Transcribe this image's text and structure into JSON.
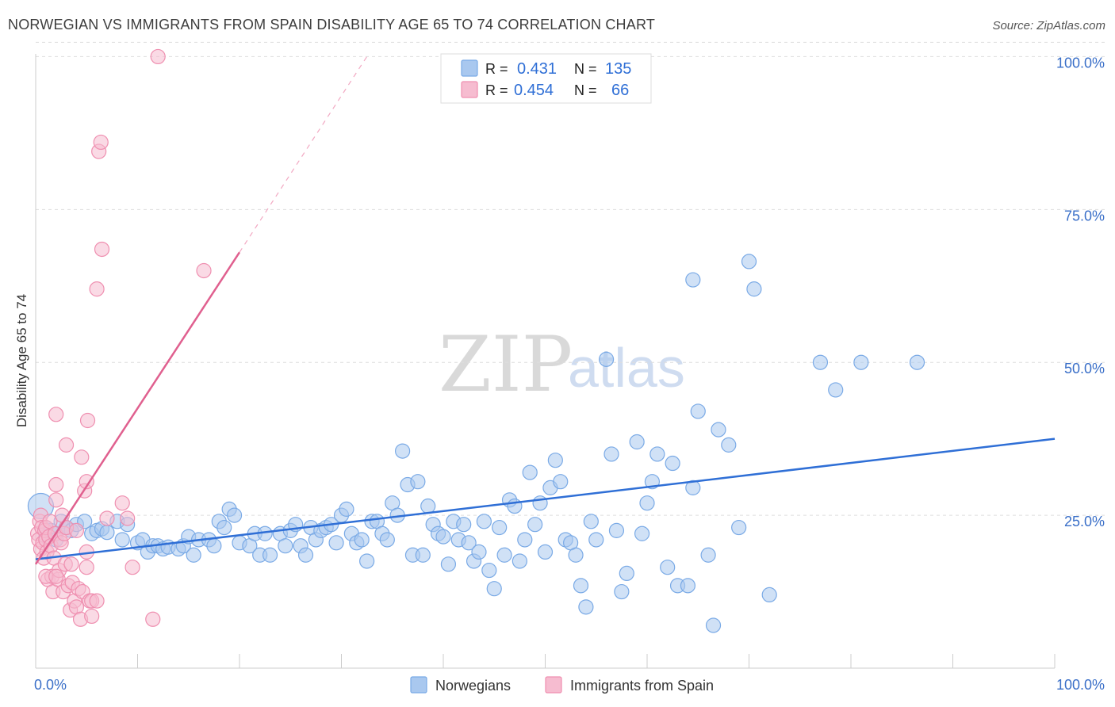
{
  "title": "NORWEGIAN VS IMMIGRANTS FROM SPAIN DISABILITY AGE 65 TO 74 CORRELATION CHART",
  "source": "Source: ZipAtlas.com",
  "watermark": {
    "zip": "ZIP",
    "atlas": "atlas"
  },
  "colors": {
    "blue_fill": "#a9c8ef",
    "blue_stroke": "#7aaae6",
    "blue_line": "#2f6fd6",
    "pink_fill": "#f6bcd0",
    "pink_stroke": "#ef8fb0",
    "pink_line": "#e0608f",
    "grid": "#dddddd",
    "tick_text": "#3a6fc8"
  },
  "stats_legend": {
    "rows": [
      {
        "r_label": "R =",
        "r_value": "0.431",
        "n_label": "N =",
        "n_value": "135"
      },
      {
        "r_label": "R =",
        "r_value": "0.454",
        "n_label": "N =",
        "n_value": "66"
      }
    ]
  },
  "chart_data": {
    "type": "scatter",
    "title": "NORWEGIAN VS IMMIGRANTS FROM SPAIN DISABILITY AGE 65 TO 74 CORRELATION CHART",
    "xlabel": "",
    "ylabel": "Disability Age 65 to 74",
    "xlim": [
      0,
      100
    ],
    "ylim": [
      0,
      102
    ],
    "x_tick_labels": [
      "0.0%",
      "100.0%"
    ],
    "y_tick_labels": [
      "25.0%",
      "50.0%",
      "75.0%",
      "100.0%"
    ],
    "y_ticks": [
      25,
      50,
      75,
      100
    ],
    "grid": true,
    "legend_position": "bottom-center",
    "series": [
      {
        "name": "Norwegians",
        "R": 0.431,
        "N": 135,
        "trend": {
          "x": [
            0,
            100
          ],
          "y": [
            17.8,
            37.5
          ]
        },
        "points": [
          [
            0.5,
            26.5
          ],
          [
            1,
            23
          ],
          [
            1,
            21.5
          ],
          [
            1.5,
            22.5
          ],
          [
            2,
            22
          ],
          [
            2,
            21
          ],
          [
            2.5,
            24
          ],
          [
            3,
            23
          ],
          [
            3.5,
            22.5
          ],
          [
            4,
            23.5
          ],
          [
            4.8,
            24
          ],
          [
            5.5,
            22
          ],
          [
            6,
            22.5
          ],
          [
            6.5,
            22.8
          ],
          [
            7,
            22.2
          ],
          [
            8,
            24
          ],
          [
            8.5,
            21
          ],
          [
            9,
            23.5
          ],
          [
            10,
            20.5
          ],
          [
            10.5,
            21
          ],
          [
            11,
            19
          ],
          [
            11.5,
            20
          ],
          [
            12,
            20
          ],
          [
            12.5,
            19.5
          ],
          [
            13,
            19.8
          ],
          [
            14,
            19.5
          ],
          [
            14.5,
            20
          ],
          [
            15,
            21.5
          ],
          [
            15.5,
            18.5
          ],
          [
            16,
            21
          ],
          [
            17,
            21
          ],
          [
            17.5,
            20
          ],
          [
            18,
            24
          ],
          [
            18.5,
            23
          ],
          [
            19,
            26
          ],
          [
            19.5,
            25
          ],
          [
            20,
            20.5
          ],
          [
            21,
            20
          ],
          [
            21.5,
            22
          ],
          [
            22,
            18.5
          ],
          [
            22.5,
            22
          ],
          [
            23,
            18.5
          ],
          [
            24,
            22
          ],
          [
            24.5,
            20
          ],
          [
            25,
            22.5
          ],
          [
            25.5,
            23.5
          ],
          [
            26,
            20
          ],
          [
            26.5,
            18.5
          ],
          [
            27,
            23
          ],
          [
            27.5,
            21
          ],
          [
            28,
            22.5
          ],
          [
            28.5,
            23
          ],
          [
            29,
            23.5
          ],
          [
            29.5,
            20.5
          ],
          [
            30,
            25
          ],
          [
            30.5,
            26
          ],
          [
            31,
            22
          ],
          [
            31.5,
            20.5
          ],
          [
            32,
            21
          ],
          [
            32.5,
            17.5
          ],
          [
            33,
            24
          ],
          [
            33.5,
            24
          ],
          [
            34,
            22
          ],
          [
            34.5,
            21
          ],
          [
            35,
            27
          ],
          [
            35.5,
            25
          ],
          [
            36,
            35.5
          ],
          [
            36.5,
            30
          ],
          [
            37,
            18.5
          ],
          [
            37.5,
            30.5
          ],
          [
            38,
            18.5
          ],
          [
            38.5,
            26.5
          ],
          [
            39,
            23.5
          ],
          [
            39.5,
            22
          ],
          [
            40,
            21.5
          ],
          [
            40.5,
            17
          ],
          [
            41,
            24
          ],
          [
            41.5,
            21
          ],
          [
            42,
            23.5
          ],
          [
            42.5,
            20.5
          ],
          [
            43,
            17.5
          ],
          [
            43.5,
            19
          ],
          [
            44,
            24
          ],
          [
            44.5,
            16
          ],
          [
            45,
            13
          ],
          [
            45.5,
            23
          ],
          [
            46,
            18.5
          ],
          [
            46.5,
            27.5
          ],
          [
            47,
            26.5
          ],
          [
            47.5,
            17.5
          ],
          [
            48,
            21
          ],
          [
            48.5,
            32
          ],
          [
            49,
            23.5
          ],
          [
            49.5,
            27
          ],
          [
            50,
            19
          ],
          [
            50.5,
            29.5
          ],
          [
            51,
            34
          ],
          [
            51.5,
            30.5
          ],
          [
            52,
            21
          ],
          [
            52.5,
            20.5
          ],
          [
            53,
            18.5
          ],
          [
            53.5,
            13.5
          ],
          [
            54,
            10
          ],
          [
            54.5,
            24
          ],
          [
            55,
            21
          ],
          [
            56,
            50.5
          ],
          [
            56.5,
            35
          ],
          [
            57,
            22.5
          ],
          [
            57.5,
            12.5
          ],
          [
            58,
            15.5
          ],
          [
            59,
            37
          ],
          [
            59.5,
            22
          ],
          [
            60,
            27
          ],
          [
            60.5,
            30.5
          ],
          [
            61,
            35
          ],
          [
            62,
            16.5
          ],
          [
            62.5,
            33.5
          ],
          [
            63,
            13.5
          ],
          [
            64,
            13.5
          ],
          [
            64.5,
            29.5
          ],
          [
            64.5,
            63.5
          ],
          [
            65,
            42
          ],
          [
            66,
            18.5
          ],
          [
            66.5,
            7
          ],
          [
            67,
            39
          ],
          [
            68,
            36.5
          ],
          [
            69,
            23
          ],
          [
            70,
            66.5
          ],
          [
            70.5,
            62
          ],
          [
            72,
            12
          ],
          [
            77,
            50
          ],
          [
            78.5,
            45.5
          ],
          [
            81,
            50
          ],
          [
            86.5,
            50
          ]
        ]
      },
      {
        "name": "Immigrants from Spain",
        "R": 0.454,
        "N": 66,
        "trend": {
          "x": [
            0,
            20
          ],
          "y": [
            17,
            68
          ]
        },
        "trend_dashed": {
          "x": [
            20,
            32.5
          ],
          "y": [
            68,
            100
          ]
        },
        "points": [
          [
            0.2,
            22
          ],
          [
            0.3,
            21
          ],
          [
            0.4,
            24
          ],
          [
            0.5,
            25
          ],
          [
            0.5,
            19.5
          ],
          [
            0.6,
            23
          ],
          [
            0.7,
            20.5
          ],
          [
            0.8,
            18
          ],
          [
            0.9,
            22.5
          ],
          [
            1,
            21
          ],
          [
            1,
            23
          ],
          [
            1.1,
            19
          ],
          [
            1.2,
            14.5
          ],
          [
            1.3,
            21.5
          ],
          [
            1.4,
            24
          ],
          [
            1.5,
            20
          ],
          [
            1.6,
            15
          ],
          [
            1.7,
            12.5
          ],
          [
            1.8,
            18
          ],
          [
            1.9,
            22
          ],
          [
            2,
            27.5
          ],
          [
            2,
            30
          ],
          [
            2,
            41.5
          ],
          [
            2.2,
            14.5
          ],
          [
            2.3,
            16
          ],
          [
            2.4,
            21
          ],
          [
            2.5,
            20.5
          ],
          [
            2.6,
            25
          ],
          [
            2.7,
            12.5
          ],
          [
            2.8,
            22
          ],
          [
            2.9,
            17
          ],
          [
            3,
            23
          ],
          [
            3,
            36.5
          ],
          [
            3.2,
            13.5
          ],
          [
            3.4,
            9.5
          ],
          [
            3.5,
            17
          ],
          [
            3.6,
            14
          ],
          [
            3.8,
            11
          ],
          [
            4,
            22.5
          ],
          [
            4,
            10
          ],
          [
            4.2,
            13
          ],
          [
            4.4,
            8
          ],
          [
            4.5,
            34.5
          ],
          [
            4.6,
            12.5
          ],
          [
            4.8,
            29
          ],
          [
            5,
            19
          ],
          [
            5,
            16.5
          ],
          [
            5,
            30.5
          ],
          [
            5.1,
            40.5
          ],
          [
            5.3,
            11
          ],
          [
            5.5,
            11
          ],
          [
            5.5,
            8.5
          ],
          [
            6,
            62
          ],
          [
            6.5,
            68.5
          ],
          [
            6,
            11
          ],
          [
            6.2,
            84.5
          ],
          [
            6.4,
            86
          ],
          [
            7,
            24.5
          ],
          [
            8.5,
            27
          ],
          [
            9,
            24.5
          ],
          [
            9.5,
            16.5
          ],
          [
            11.5,
            8
          ],
          [
            12,
            100
          ],
          [
            16.5,
            65
          ],
          [
            1,
            15
          ],
          [
            2,
            15
          ]
        ]
      }
    ]
  },
  "bottom_legend": {
    "items": [
      {
        "label": "Norwegians"
      },
      {
        "label": "Immigrants from Spain"
      }
    ]
  }
}
